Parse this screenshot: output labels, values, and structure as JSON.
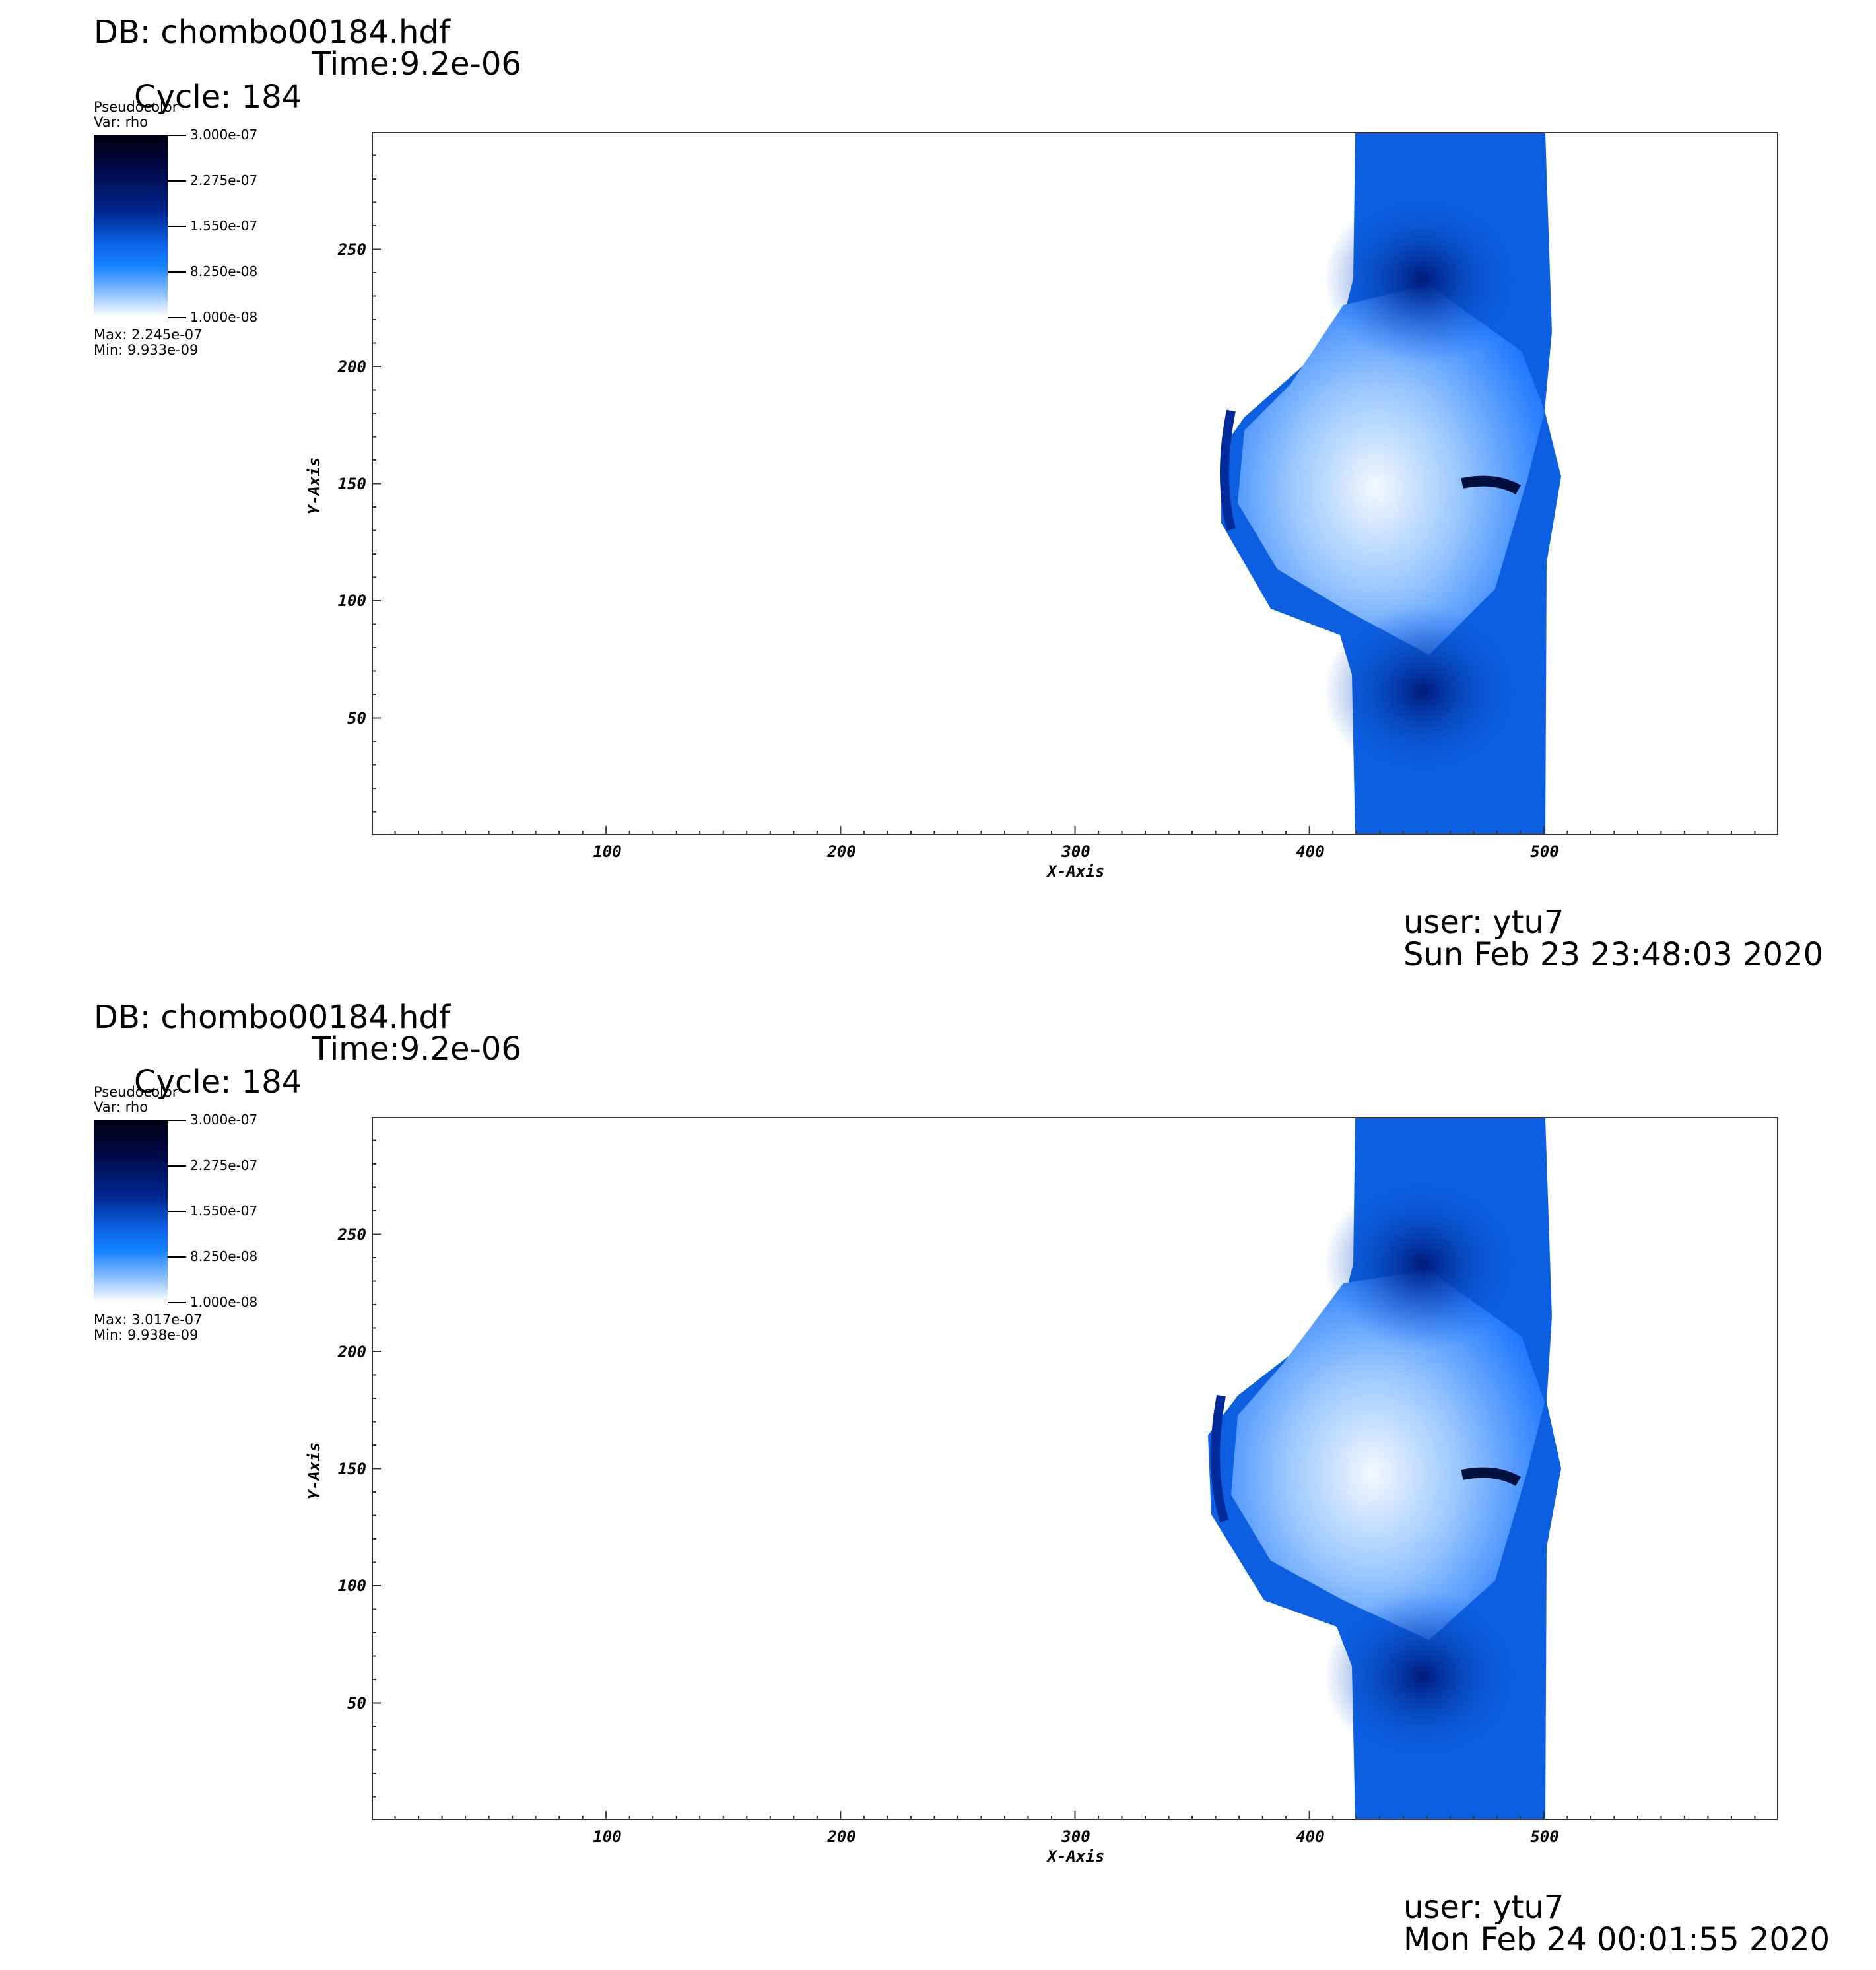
{
  "chart_data": [
    {
      "type": "heatmap",
      "db_label": "DB: chombo00184.hdf",
      "cycle_label": "Cycle: 184",
      "time_label": "Time:9.2e-06",
      "legend": {
        "plot_type": "Pseudocolor",
        "var": "Var: rho",
        "ticks": [
          "3.000e-07",
          "2.275e-07",
          "1.550e-07",
          "8.250e-08",
          "1.000e-08"
        ],
        "max": "Max:  2.245e-07",
        "min": "Min:  9.933e-09"
      },
      "xlabel": "X-Axis",
      "ylabel": "Y-Axis",
      "x_ticks": [
        "100",
        "200",
        "300",
        "400",
        "500"
      ],
      "y_ticks": [
        "250",
        "200",
        "150",
        "100",
        "50"
      ],
      "xlim": [
        0,
        600
      ],
      "ylim": [
        0,
        300
      ],
      "colormap": [
        "#ffffff",
        "#1583ff",
        "#0b63e6",
        "#00268f",
        "#000845",
        "#000010"
      ],
      "user": "user: ytu7",
      "date": "Sun Feb 23 23:48:03 2020"
    },
    {
      "type": "heatmap",
      "db_label": "DB: chombo00184.hdf",
      "cycle_label": "Cycle: 184",
      "time_label": "Time:9.2e-06",
      "legend": {
        "plot_type": "Pseudocolor",
        "var": "Var: rho",
        "ticks": [
          "3.000e-07",
          "2.275e-07",
          "1.550e-07",
          "8.250e-08",
          "1.000e-08"
        ],
        "max": "Max:  3.017e-07",
        "min": "Min:  9.938e-09"
      },
      "xlabel": "X-Axis",
      "ylabel": "Y-Axis",
      "x_ticks": [
        "100",
        "200",
        "300",
        "400",
        "500"
      ],
      "y_ticks": [
        "250",
        "200",
        "150",
        "100",
        "50"
      ],
      "xlim": [
        0,
        600
      ],
      "ylim": [
        0,
        300
      ],
      "colormap": [
        "#ffffff",
        "#1583ff",
        "#0b63e6",
        "#00268f",
        "#000845",
        "#000010"
      ],
      "user": "user: ytu7",
      "date": "Mon Feb 24 00:01:55 2020"
    }
  ]
}
